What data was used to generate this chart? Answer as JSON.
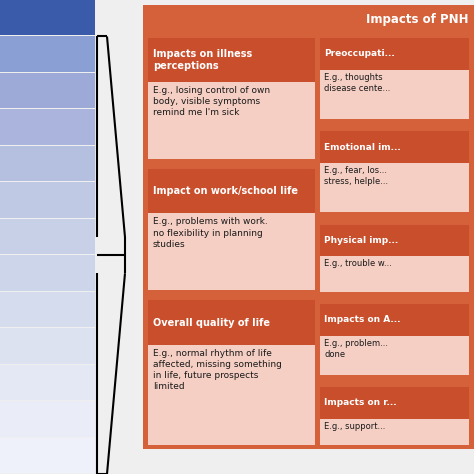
{
  "title": "Impacts of PNH",
  "background_color": "#f0eff0",
  "bar_colors": [
    "#3a5aaa",
    "#8a9fd4",
    "#9daad8",
    "#aab4dc",
    "#b5bfe0",
    "#bfc9e4",
    "#c8d0e8",
    "#cdd5ea",
    "#d5dcee",
    "#dce2f0",
    "#e3e8f4",
    "#eaedf8",
    "#eef1fa"
  ],
  "right_outer_bg": "#d4613a",
  "right_header_bg": "#c94e2c",
  "right_body_bg": "#f5cfc3",
  "right_section_bg": "#f0c8ba",
  "sections_left": [
    {
      "header": "Impacts on illness\nperceptions",
      "body": "E.g., losing control of own\nbody, visible symptoms\nremind me I'm sick"
    },
    {
      "header": "Impact on work/school life",
      "body": "E.g., problems with work.\nno flexibility in planning\nstudies"
    },
    {
      "header": "Overall quality of life",
      "body": "E.g., normal rhythm of life\naffected, missing something\nin life, future prospects\nlimited"
    }
  ],
  "sections_right": [
    {
      "header": "Preoccupati...",
      "body": "E.g., thoughts\ndisease cente..."
    },
    {
      "header": "Emotional im...",
      "body": "E.g., fear, los...\nstress, helple..."
    },
    {
      "header": "Physical imp...",
      "body": "E.g., trouble w..."
    },
    {
      "header": "Impacts on A...",
      "body": "E.g., problem...\ndone"
    },
    {
      "header": "Impacts on r...",
      "body": "E.g., support..."
    }
  ]
}
